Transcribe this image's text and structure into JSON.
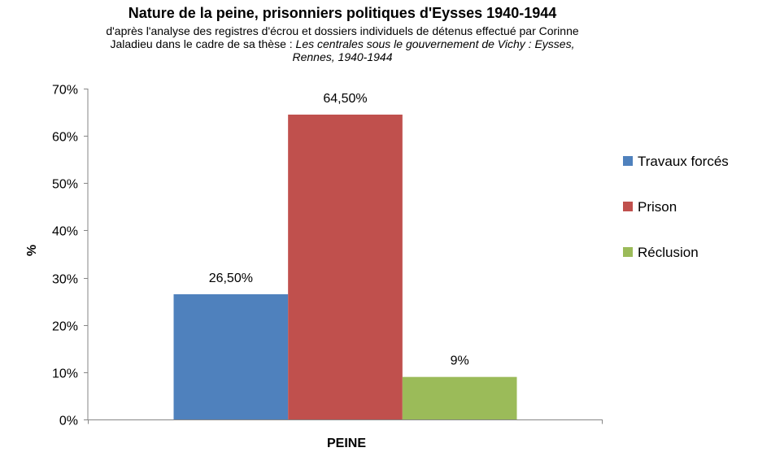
{
  "chart_data": {
    "type": "bar",
    "title": "Nature de la peine, prisonniers politiques d'Eysses 1940-1944",
    "subtitle": {
      "line1": "d'après l'analyse des registres d'écrou et dossiers individuels de détenus effectué par Corinne",
      "line2_plain": "Jaladieu dans le cadre de sa thèse : ",
      "line2_italic": "Les centrales sous le gouvernement  de Vichy : Eysses,",
      "line3_italic": "Rennes, 1940-1944"
    },
    "categories": [
      "PEINE"
    ],
    "xlabel": "PEINE",
    "ylabel": "%",
    "ylim": [
      0,
      70
    ],
    "yticks": [
      0,
      10,
      20,
      30,
      40,
      50,
      60,
      70
    ],
    "ytick_labels": [
      "0%",
      "10%",
      "20%",
      "30%",
      "40%",
      "50%",
      "60%",
      "70%"
    ],
    "grid": false,
    "legend_position": "right",
    "series": [
      {
        "name": "Travaux forcés",
        "values": [
          26.5
        ],
        "label": "26,50%",
        "color": "#4F81BD"
      },
      {
        "name": "Prison",
        "values": [
          64.5
        ],
        "label": "64,50%",
        "color": "#C0504D"
      },
      {
        "name": "Réclusion",
        "values": [
          9
        ],
        "label": "9%",
        "color": "#9BBB59"
      }
    ]
  }
}
